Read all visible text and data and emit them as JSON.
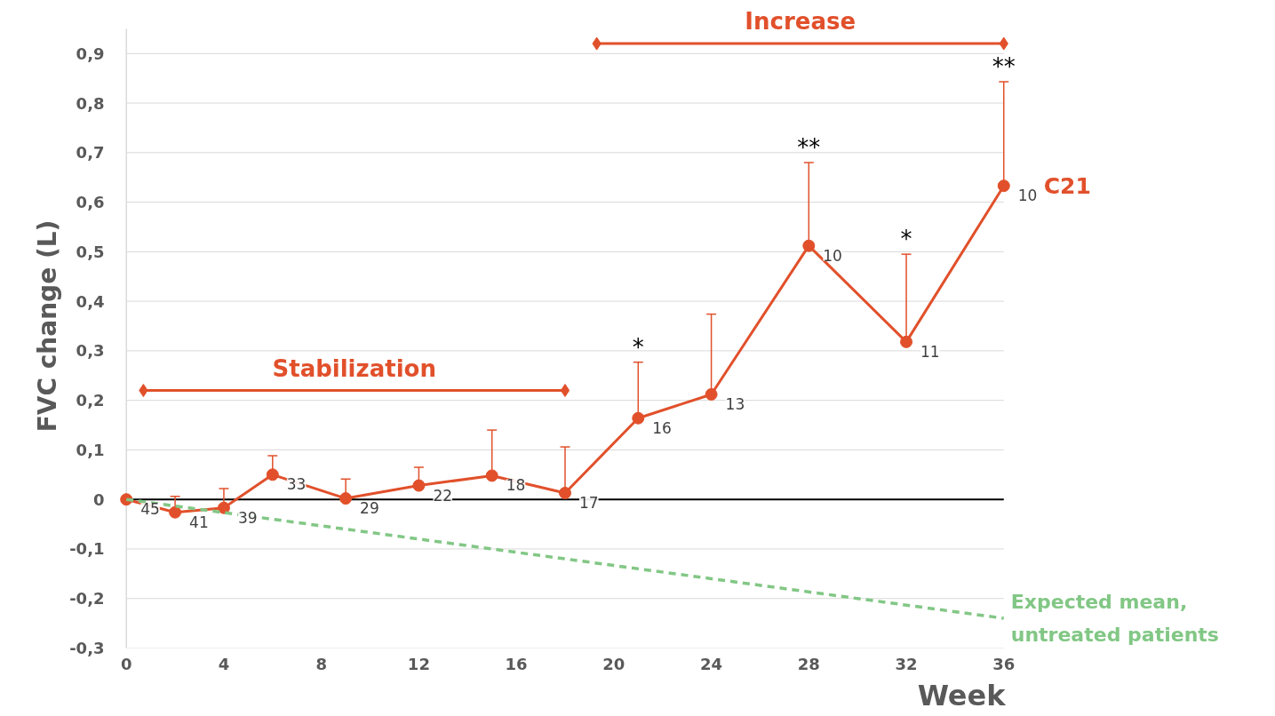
{
  "chart_data": {
    "type": "line",
    "xlabel": "Week",
    "ylabel": "FVC change (L)",
    "xlim": [
      0,
      36
    ],
    "xticks": [
      0,
      4,
      8,
      12,
      16,
      20,
      24,
      28,
      32,
      36
    ],
    "ylim": [
      -0.3,
      0.95
    ],
    "yticks": [
      {
        "value": -0.3,
        "label": "-0,3"
      },
      {
        "value": -0.2,
        "label": "-0,2"
      },
      {
        "value": -0.1,
        "label": "-0,1"
      },
      0,
      {
        "value": 0.1,
        "label": "0,1"
      },
      {
        "value": 0.2,
        "label": "0,2"
      },
      {
        "value": 0.3,
        "label": "0,3"
      },
      {
        "value": 0.4,
        "label": "0,4"
      },
      {
        "value": 0.5,
        "label": "0,5"
      },
      {
        "value": 0.6,
        "label": "0,6"
      },
      {
        "value": 0.7,
        "label": "0,7"
      },
      {
        "value": 0.8,
        "label": "0,8"
      },
      {
        "value": 0.9,
        "label": "0,9"
      }
    ],
    "grid": "y",
    "ref_lines": [
      {
        "axis": "y",
        "value": 0,
        "color": "#000000"
      }
    ],
    "series": [
      {
        "name": "C21",
        "color": "#e1502b",
        "marker": "circle",
        "line_style": "solid",
        "x": [
          0,
          2,
          4,
          6,
          9,
          12,
          15,
          18,
          21,
          24,
          28,
          32,
          36
        ],
        "values": [
          0,
          -0.026,
          -0.017,
          0.05,
          0.002,
          0.028,
          0.048,
          0.013,
          0.164,
          0.212,
          0.512,
          0.318,
          0.633
        ],
        "errors": [
          null,
          [
            -0.026,
            0.006
          ],
          [
            -0.017,
            0.022
          ],
          [
            0.05,
            0.088
          ],
          [
            0.002,
            0.041
          ],
          [
            0.028,
            0.065
          ],
          [
            0.048,
            0.14
          ],
          [
            0.013,
            0.106
          ],
          [
            0.164,
            0.277
          ],
          [
            0.212,
            0.374
          ],
          [
            0.512,
            0.68
          ],
          [
            0.318,
            0.495
          ],
          [
            0.633,
            0.843
          ]
        ]
      },
      {
        "name": "Expected mean,\nuntreated patients",
        "color": "#82c785",
        "marker": "none",
        "line_style": "dashed",
        "x": [
          0,
          36
        ],
        "values": [
          0,
          -0.24
        ]
      },
      {
        "name": "Stabilization",
        "color": "#e1502b",
        "marker": "diamond",
        "line_style": "solid",
        "x": [
          0.7,
          18
        ],
        "values": [
          0.22,
          0.22
        ]
      },
      {
        "name": "Increase",
        "color": "#e1502b",
        "marker": "diamond",
        "line_style": "solid",
        "x": [
          19.3,
          36
        ],
        "values": [
          0.92,
          0.92
        ]
      }
    ],
    "annotations": [
      {
        "text": "45",
        "x": 0,
        "y": 0
      },
      {
        "text": "41",
        "x": 2,
        "y": -0.026
      },
      {
        "text": "39",
        "x": 4,
        "y": -0.017
      },
      {
        "text": "33",
        "x": 6,
        "y": 0.05
      },
      {
        "text": "29",
        "x": 9,
        "y": 0.002
      },
      {
        "text": "22",
        "x": 12,
        "y": 0.028
      },
      {
        "text": "18",
        "x": 15,
        "y": 0.048
      },
      {
        "text": "17",
        "x": 18,
        "y": 0.013
      },
      {
        "text": "16",
        "x": 21,
        "y": 0.164
      },
      {
        "text": "13",
        "x": 24,
        "y": 0.212
      },
      {
        "text": "10",
        "x": 28,
        "y": 0.512
      },
      {
        "text": "11",
        "x": 32,
        "y": 0.318
      },
      {
        "text": "10",
        "x": 36,
        "y": 0.633
      },
      {
        "text": "*",
        "x": 21,
        "y": 0.277
      },
      {
        "text": "**",
        "x": 28,
        "y": 0.68
      },
      {
        "text": "*",
        "x": 32,
        "y": 0.495
      },
      {
        "text": "**",
        "x": 36,
        "y": 0.843
      }
    ]
  }
}
